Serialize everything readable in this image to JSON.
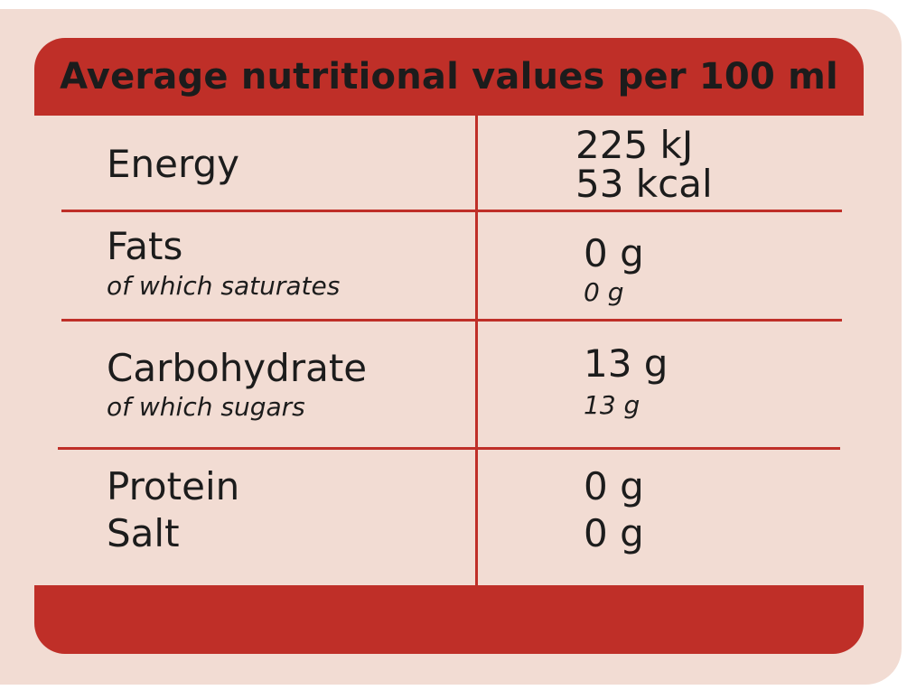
{
  "header": {
    "title": "Average nutritional values per 100 ml"
  },
  "rows": [
    {
      "name": "Energy",
      "values": [
        "225 kJ",
        "53 kcal"
      ]
    },
    {
      "name": "Fats",
      "sub_name": "of which saturates",
      "value": "0 g",
      "sub_value": "0 g"
    },
    {
      "name": "Carbohydrate",
      "sub_name": "of which sugars",
      "value": "13 g",
      "sub_value": "13 g"
    },
    {
      "name": "Protein",
      "value": "0 g"
    },
    {
      "name": "Salt",
      "value": "0 g"
    }
  ],
  "colors": {
    "accent": "#bf2f28",
    "background": "#f2dcd3",
    "text": "#1c1c1c"
  }
}
